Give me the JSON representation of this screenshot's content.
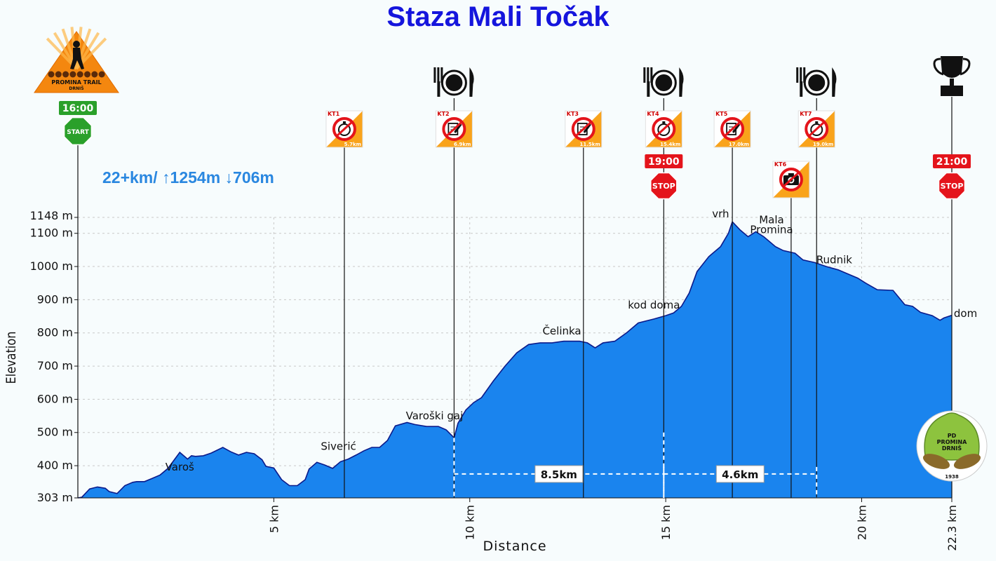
{
  "title": "Staza Mali Točak",
  "summary": "22+km/ ↑1254m ↓706m",
  "chart_data": {
    "type": "area",
    "xlabel": "Distance",
    "ylabel": "Elevation",
    "xlim": [
      0,
      22.3
    ],
    "ylim": [
      303,
      1148
    ],
    "yticks": [
      {
        "value": 303,
        "label": "303 m"
      },
      {
        "value": 400,
        "label": "400 m"
      },
      {
        "value": 500,
        "label": "500 m"
      },
      {
        "value": 600,
        "label": "600 m"
      },
      {
        "value": 700,
        "label": "700 m"
      },
      {
        "value": 800,
        "label": "800 m"
      },
      {
        "value": 900,
        "label": "900 m"
      },
      {
        "value": 1000,
        "label": "1000 m"
      },
      {
        "value": 1100,
        "label": "1100 m"
      },
      {
        "value": 1148,
        "label": "1148 m"
      }
    ],
    "xticks": [
      {
        "value": 5,
        "label": "5 km"
      },
      {
        "value": 10,
        "label": "10 km"
      },
      {
        "value": 15,
        "label": "15 km"
      },
      {
        "value": 20,
        "label": "20 km"
      },
      {
        "value": 22.3,
        "label": "22.3 km"
      }
    ],
    "grid": true,
    "fill_color": "#1a84ee",
    "line_color": "#0b1a8a",
    "series": [
      {
        "x": [
          0,
          0.1,
          0.3,
          0.5,
          0.7,
          0.8,
          1.0,
          1.2,
          1.4,
          1.5,
          1.7,
          1.9,
          2.1,
          2.3,
          2.6,
          2.8,
          2.9,
          3.0,
          3.2,
          3.4,
          3.7,
          3.9,
          4.1,
          4.3,
          4.5,
          4.7,
          4.8,
          5.0,
          5.2,
          5.4,
          5.6,
          5.8,
          5.9,
          6.1,
          6.3,
          6.5,
          6.7,
          6.9,
          7.1,
          7.3,
          7.5,
          7.7,
          7.9,
          8.1,
          8.4,
          8.6,
          8.9,
          9.2,
          9.4,
          9.6,
          9.7,
          9.9,
          10.1,
          10.3,
          10.6,
          10.9,
          11.2,
          11.5,
          11.8,
          12.1,
          12.4,
          12.8,
          13.0,
          13.2,
          13.4,
          13.7,
          14.0,
          14.3,
          14.7,
          15.0,
          15.2,
          15.4,
          15.6,
          15.8,
          16.1,
          16.4,
          16.6,
          16.7,
          16.9,
          17.1,
          17.3,
          17.5,
          17.8,
          18.0,
          18.3,
          18.5,
          18.8,
          19.1,
          19.4,
          19.6,
          19.9,
          20.1,
          20.4,
          20.8,
          21.1,
          21.3,
          21.5,
          21.8,
          22.0,
          22.1,
          22.3
        ],
        "y": [
          303,
          305,
          330,
          336,
          332,
          322,
          316,
          340,
          350,
          352,
          352,
          362,
          372,
          392,
          440,
          420,
          430,
          428,
          430,
          438,
          455,
          442,
          432,
          440,
          436,
          418,
          398,
          393,
          358,
          340,
          340,
          358,
          390,
          410,
          402,
          392,
          412,
          420,
          432,
          445,
          455,
          455,
          476,
          520,
          530,
          524,
          518,
          518,
          508,
          484,
          528,
          568,
          590,
          605,
          655,
          700,
          740,
          765,
          770,
          770,
          775,
          775,
          770,
          755,
          770,
          775,
          800,
          830,
          842,
          852,
          860,
          880,
          920,
          985,
          1030,
          1060,
          1100,
          1135,
          1110,
          1090,
          1105,
          1090,
          1060,
          1048,
          1040,
          1020,
          1012,
          1000,
          990,
          980,
          965,
          950,
          930,
          928,
          885,
          880,
          862,
          852,
          838,
          845,
          853
        ]
      }
    ],
    "place_labels": [
      {
        "x": 2.6,
        "y": 385,
        "label": "Varoš"
      },
      {
        "x": 6.65,
        "y": 448,
        "label": "Siverić"
      },
      {
        "x": 9.1,
        "y": 540,
        "label": "Varoški gaj"
      },
      {
        "x": 12.35,
        "y": 795,
        "label": "Čelinka"
      },
      {
        "x": 14.7,
        "y": 873,
        "label": "kod doma"
      },
      {
        "x": 16.4,
        "y": 1148,
        "label": "vrh"
      },
      {
        "x": 17.7,
        "y": 1130,
        "label": "Mala"
      },
      {
        "x": 17.7,
        "y": 1100,
        "label": "Promina"
      },
      {
        "x": 19.3,
        "y": 1010,
        "label": "Rudnik"
      },
      {
        "x": 22.65,
        "y": 848,
        "label": "dom"
      }
    ],
    "checkpoints": [
      {
        "id": "KT1",
        "km_label": "5.7km",
        "x": 6.8,
        "icon": "stopwatch-icon"
      },
      {
        "id": "KT2",
        "km_label": "6.9km",
        "x": 9.6,
        "icon": "pen-paper-icon"
      },
      {
        "id": "KT3",
        "km_label": "11.5km",
        "x": 12.9,
        "icon": "pen-paper-icon"
      },
      {
        "id": "KT4",
        "km_label": "15.4km",
        "x": 14.95,
        "icon": "stopwatch-icon"
      },
      {
        "id": "KT5",
        "km_label": "17.0km",
        "x": 16.7,
        "icon": "pen-paper-icon"
      },
      {
        "id": "KT6",
        "km_label": "",
        "x": 18.2,
        "icon": "camera-icon"
      },
      {
        "id": "KT7",
        "km_label": "19.0km",
        "x": 18.85,
        "icon": "stopwatch-icon"
      }
    ],
    "food_stations": [
      9.6,
      14.95,
      18.85
    ],
    "start": {
      "x": 0,
      "time": "16:00",
      "sign": "START"
    },
    "cutoffs": [
      {
        "x": 14.95,
        "time": "19:00",
        "sign": "STOP"
      },
      {
        "x": 22.3,
        "time": "21:00",
        "sign": "STOP"
      }
    ],
    "segments": [
      {
        "x1": 9.6,
        "x2": 14.95,
        "y": 375,
        "label": "8.5km"
      },
      {
        "x1": 14.95,
        "x2": 18.85,
        "y": 375,
        "label": "4.6km"
      }
    ]
  },
  "logos": {
    "top_left": {
      "text1": "PROMINA TRAIL",
      "text2": "DRNIŠ",
      "color": "#f4870f"
    },
    "bottom_right": {
      "text1": "PD",
      "text2": "PROMINA",
      "text3": "DRNIŠ",
      "year": "1938",
      "color": "#8dc33e"
    }
  }
}
